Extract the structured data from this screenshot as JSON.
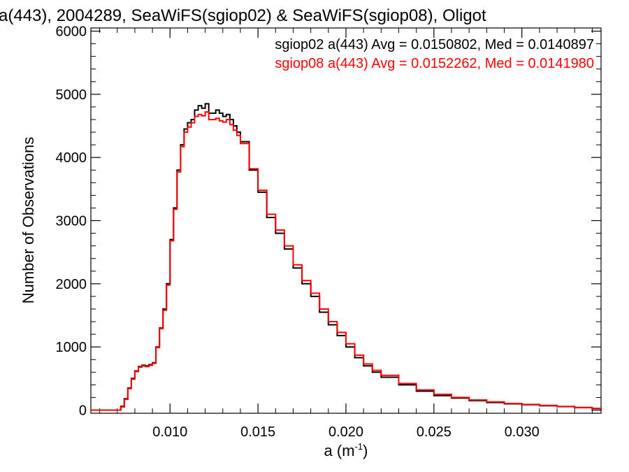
{
  "chart_data": {
    "type": "line",
    "title": "a(443), 2004289, SeaWiFS(sgiop02) & SeaWiFS(sgiop08), Oligot",
    "xlabel": "a (m",
    "xlabel_sup": "-1",
    "xlabel_close": ")",
    "ylabel": "Number of Observations",
    "xlim": [
      0.0055,
      0.0345
    ],
    "ylim": [
      -50,
      6050
    ],
    "x_ticks": [
      0.01,
      0.015,
      0.02,
      0.025,
      0.03
    ],
    "x_tick_labels": [
      "0.010",
      "0.015",
      "0.020",
      "0.025",
      "0.030"
    ],
    "y_ticks": [
      0,
      1000,
      2000,
      3000,
      4000,
      5000,
      6000
    ],
    "y_tick_labels": [
      "0",
      "1000",
      "2000",
      "3000",
      "4000",
      "5000",
      "6000"
    ],
    "grid": false,
    "legend_position": "top-right",
    "annotations": [
      {
        "text": "sgiop02 a(443) Avg = 0.0150802, Med = 0.0140897",
        "color": "#000000"
      },
      {
        "text": "sgiop08 a(443) Avg = 0.0152262, Med = 0.0141980",
        "color": "#ff0000"
      }
    ],
    "series": [
      {
        "color": "#000000",
        "x": [
          0.0055,
          0.007,
          0.0072,
          0.0074,
          0.0076,
          0.0078,
          0.008,
          0.0082,
          0.0084,
          0.0086,
          0.0088,
          0.009,
          0.0092,
          0.0094,
          0.0096,
          0.0098,
          0.01,
          0.0102,
          0.0104,
          0.0106,
          0.0108,
          0.011,
          0.0112,
          0.0114,
          0.0116,
          0.0118,
          0.012,
          0.0122,
          0.0124,
          0.0126,
          0.0128,
          0.013,
          0.0132,
          0.0134,
          0.0136,
          0.0138,
          0.014,
          0.0145,
          0.015,
          0.0155,
          0.016,
          0.0165,
          0.017,
          0.0175,
          0.018,
          0.0185,
          0.019,
          0.0195,
          0.02,
          0.0205,
          0.021,
          0.0215,
          0.022,
          0.023,
          0.024,
          0.025,
          0.026,
          0.027,
          0.028,
          0.029,
          0.03,
          0.031,
          0.032,
          0.033,
          0.034,
          0.0345
        ],
        "y": [
          0,
          0,
          60,
          180,
          350,
          500,
          620,
          690,
          710,
          700,
          720,
          750,
          1000,
          1300,
          1600,
          2000,
          2700,
          3200,
          3800,
          4200,
          4450,
          4550,
          4600,
          4750,
          4820,
          4780,
          4850,
          4700,
          4700,
          4750,
          4700,
          4650,
          4680,
          4600,
          4500,
          4400,
          4250,
          3800,
          3450,
          3050,
          2800,
          2550,
          2250,
          2000,
          1800,
          1550,
          1350,
          1180,
          1000,
          830,
          700,
          600,
          520,
          400,
          300,
          230,
          190,
          150,
          120,
          100,
          85,
          70,
          55,
          40,
          25,
          10
        ]
      },
      {
        "color": "#ff0000",
        "x": [
          0.0055,
          0.007,
          0.0072,
          0.0074,
          0.0076,
          0.0078,
          0.008,
          0.0082,
          0.0084,
          0.0086,
          0.0088,
          0.009,
          0.0092,
          0.0094,
          0.0096,
          0.0098,
          0.01,
          0.0102,
          0.0104,
          0.0106,
          0.0108,
          0.011,
          0.0112,
          0.0114,
          0.0116,
          0.0118,
          0.012,
          0.0122,
          0.0124,
          0.0126,
          0.0128,
          0.013,
          0.0132,
          0.0134,
          0.0136,
          0.0138,
          0.014,
          0.0145,
          0.015,
          0.0155,
          0.016,
          0.0165,
          0.017,
          0.0175,
          0.018,
          0.0185,
          0.019,
          0.0195,
          0.02,
          0.0205,
          0.021,
          0.0215,
          0.022,
          0.023,
          0.024,
          0.025,
          0.026,
          0.027,
          0.028,
          0.029,
          0.03,
          0.031,
          0.032,
          0.033,
          0.034,
          0.0345
        ],
        "y": [
          0,
          0,
          50,
          170,
          340,
          490,
          610,
          680,
          700,
          690,
          710,
          740,
          990,
          1290,
          1580,
          1980,
          2680,
          3180,
          3770,
          4170,
          4400,
          4480,
          4550,
          4650,
          4680,
          4660,
          4720,
          4600,
          4600,
          4620,
          4580,
          4560,
          4600,
          4520,
          4430,
          4350,
          4220,
          3820,
          3480,
          3100,
          2850,
          2600,
          2300,
          2050,
          1850,
          1600,
          1400,
          1230,
          1050,
          870,
          730,
          630,
          550,
          420,
          320,
          250,
          200,
          160,
          130,
          105,
          90,
          75,
          58,
          42,
          28,
          12
        ]
      }
    ]
  }
}
